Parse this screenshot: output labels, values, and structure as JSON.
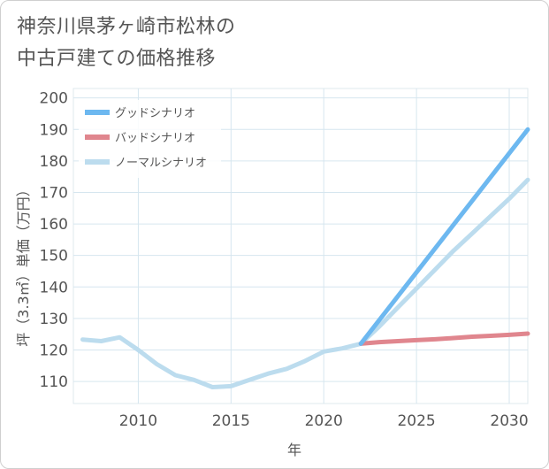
{
  "title": {
    "line1": "神奈川県茅ヶ崎市松林の",
    "line2": "中古戸建ての価格推移"
  },
  "chart_data": {
    "type": "line",
    "xlabel": "年",
    "ylabel": "坪（3.3㎡）単価（万円）",
    "xlim": [
      2006.5,
      2031
    ],
    "ylim": [
      103,
      203
    ],
    "x_ticks": [
      2010,
      2015,
      2020,
      2025,
      2030
    ],
    "y_ticks": [
      110,
      120,
      130,
      140,
      150,
      160,
      170,
      180,
      190,
      200
    ],
    "grid": true,
    "legend_position": "top-left",
    "series": [
      {
        "name": "グッドシナリオ",
        "color": "#6db8f0",
        "x": [
          2022,
          2031
        ],
        "values": [
          122,
          190
        ]
      },
      {
        "name": "バッドシナリオ",
        "color": "#e0868e",
        "x": [
          2022,
          2023,
          2024,
          2025,
          2026,
          2027,
          2028,
          2029,
          2030,
          2031
        ],
        "values": [
          122,
          122.5,
          122.8,
          123.1,
          123.4,
          123.8,
          124.2,
          124.5,
          124.8,
          125.2
        ]
      },
      {
        "name": "ノーマルシナリオ",
        "color": "#bcdcee",
        "x": [
          2007,
          2008,
          2009,
          2010,
          2011,
          2012,
          2013,
          2014,
          2015,
          2016,
          2017,
          2018,
          2019,
          2020,
          2021,
          2022,
          2023,
          2024,
          2025,
          2026,
          2027,
          2028,
          2029,
          2030,
          2031
        ],
        "values": [
          123.3,
          122.8,
          124.0,
          120.0,
          115.5,
          112.0,
          110.5,
          108.2,
          108.5,
          110.5,
          112.5,
          114.0,
          116.5,
          119.5,
          120.5,
          122.0,
          127.5,
          133.5,
          139.5,
          145.5,
          151.5,
          157.0,
          162.5,
          168.0,
          174.0
        ]
      }
    ]
  }
}
